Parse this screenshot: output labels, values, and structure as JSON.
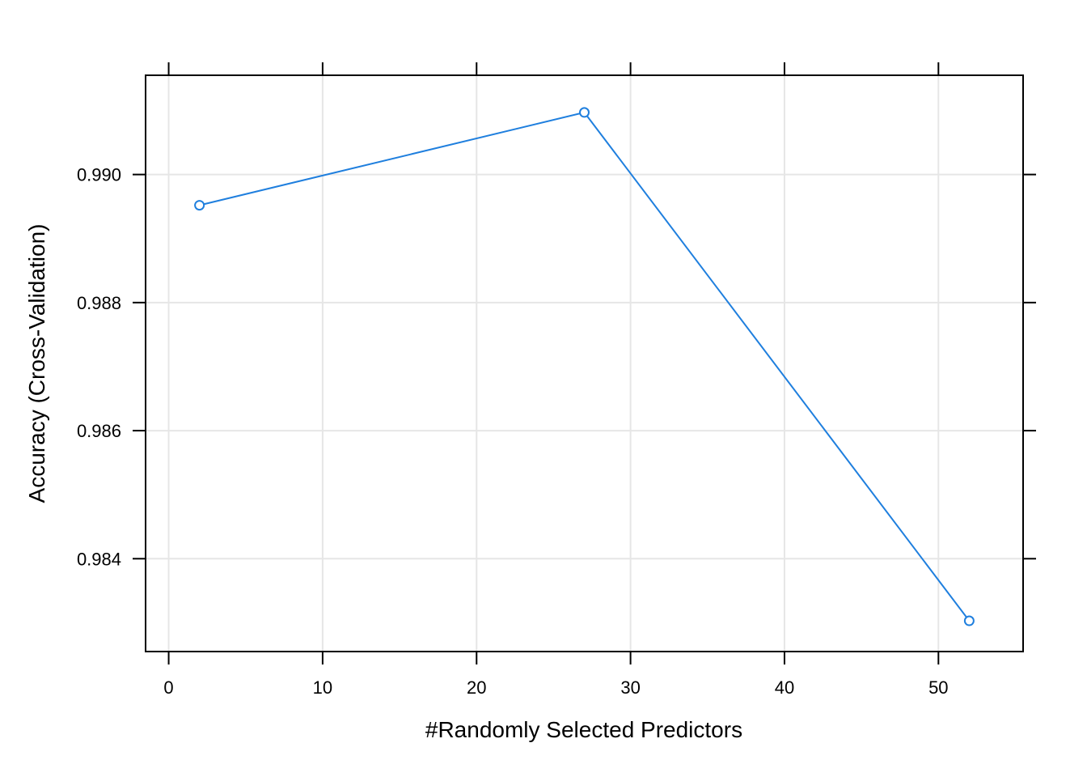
{
  "chart_data": {
    "type": "line",
    "title": "",
    "xlabel": "#Randomly Selected Predictors",
    "ylabel": "Accuracy (Cross-Validation)",
    "x": [
      2,
      27,
      52
    ],
    "series": [
      {
        "values": [
          0.98952,
          0.99097,
          0.98303
        ]
      }
    ],
    "xlim": [
      -1.5,
      55.5
    ],
    "ylim": [
      0.98255,
      0.99155
    ],
    "xticks": [
      "0",
      "10",
      "20",
      "30",
      "40",
      "50"
    ],
    "yticks": [
      "0.984",
      "0.986",
      "0.988",
      "0.990"
    ],
    "grid": true,
    "marker": "open-circle",
    "line_color": "#1f7fde",
    "grid_color": "#e6e6e6"
  }
}
